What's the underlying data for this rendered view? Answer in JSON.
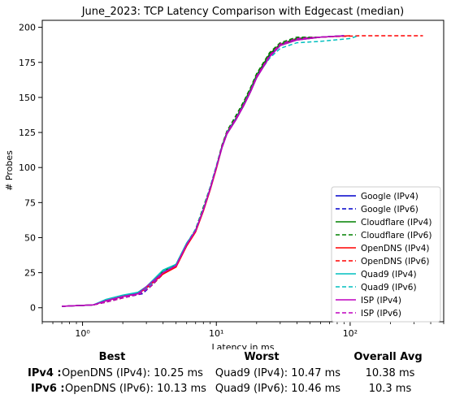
{
  "chart_data": {
    "type": "line",
    "title": "June_2023: TCP Latency Comparison with Edgecast (median)",
    "xlabel": "Latency in ms",
    "ylabel": "# Probes",
    "xscale": "log",
    "xlim": [
      0.5,
      500
    ],
    "ylim": [
      -10,
      205
    ],
    "x_ticks": [
      {
        "value": 1,
        "label": "10⁰"
      },
      {
        "value": 10,
        "label": "10¹"
      },
      {
        "value": 100,
        "label": "10²"
      }
    ],
    "y_ticks": [
      0,
      25,
      50,
      75,
      100,
      125,
      150,
      175,
      200
    ],
    "legend_position": "lower-right",
    "series": [
      {
        "name": "Google (IPv4)",
        "color": "#0000cc",
        "dash": "solid",
        "points": [
          [
            0.7,
            1
          ],
          [
            1.2,
            2
          ],
          [
            1.5,
            5
          ],
          [
            2,
            8
          ],
          [
            2.6,
            10
          ],
          [
            3,
            15
          ],
          [
            4,
            25
          ],
          [
            5,
            30
          ],
          [
            6,
            45
          ],
          [
            7,
            55
          ],
          [
            8,
            70
          ],
          [
            9,
            85
          ],
          [
            10,
            100
          ],
          [
            11,
            115
          ],
          [
            12,
            125
          ],
          [
            14,
            135
          ],
          [
            16,
            145
          ],
          [
            18,
            155
          ],
          [
            20,
            165
          ],
          [
            25,
            180
          ],
          [
            30,
            188
          ],
          [
            40,
            192
          ],
          [
            60,
            193
          ],
          [
            90,
            194
          ]
        ]
      },
      {
        "name": "Google (IPv6)",
        "color": "#0000cc",
        "dash": "dashed",
        "points": [
          [
            0.7,
            1
          ],
          [
            1.2,
            2
          ],
          [
            1.5,
            4
          ],
          [
            2,
            7
          ],
          [
            2.8,
            10
          ],
          [
            3.3,
            16
          ],
          [
            4,
            24
          ],
          [
            5,
            31
          ],
          [
            6,
            44
          ],
          [
            7,
            56
          ],
          [
            8,
            71
          ],
          [
            9,
            86
          ],
          [
            10,
            101
          ],
          [
            11,
            114
          ],
          [
            12,
            126
          ],
          [
            14,
            136
          ],
          [
            16,
            146
          ],
          [
            18,
            156
          ],
          [
            20,
            166
          ],
          [
            25,
            181
          ],
          [
            30,
            188
          ],
          [
            40,
            192
          ],
          [
            60,
            193
          ],
          [
            90,
            194
          ]
        ]
      },
      {
        "name": "Cloudflare (IPv4)",
        "color": "#008000",
        "dash": "solid",
        "points": [
          [
            0.7,
            1
          ],
          [
            1.2,
            2
          ],
          [
            1.5,
            5
          ],
          [
            2,
            8
          ],
          [
            2.6,
            11
          ],
          [
            3,
            15
          ],
          [
            4,
            26
          ],
          [
            5,
            31
          ],
          [
            6,
            46
          ],
          [
            7,
            55
          ],
          [
            8,
            70
          ],
          [
            9,
            85
          ],
          [
            10,
            100
          ],
          [
            11,
            115
          ],
          [
            12,
            125
          ],
          [
            14,
            135
          ],
          [
            16,
            146
          ],
          [
            18,
            156
          ],
          [
            20,
            166
          ],
          [
            25,
            181
          ],
          [
            30,
            188
          ],
          [
            40,
            192
          ],
          [
            60,
            193
          ],
          [
            90,
            194
          ]
        ]
      },
      {
        "name": "Cloudflare (IPv6)",
        "color": "#008000",
        "dash": "dashed",
        "points": [
          [
            0.7,
            1
          ],
          [
            1.2,
            2
          ],
          [
            1.5,
            4
          ],
          [
            2,
            7
          ],
          [
            2.7,
            10
          ],
          [
            3.2,
            16
          ],
          [
            4,
            25
          ],
          [
            5,
            30
          ],
          [
            6,
            45
          ],
          [
            7,
            56
          ],
          [
            8,
            72
          ],
          [
            9,
            86
          ],
          [
            10,
            101
          ],
          [
            11,
            116
          ],
          [
            12,
            126
          ],
          [
            14,
            137
          ],
          [
            16,
            147
          ],
          [
            18,
            157
          ],
          [
            20,
            167
          ],
          [
            25,
            182
          ],
          [
            30,
            189
          ],
          [
            40,
            193
          ],
          [
            60,
            193
          ],
          [
            90,
            194
          ]
        ]
      },
      {
        "name": "OpenDNS (IPv4)",
        "color": "#ff0000",
        "dash": "solid",
        "points": [
          [
            0.7,
            1
          ],
          [
            1.2,
            2
          ],
          [
            1.5,
            5
          ],
          [
            2,
            8
          ],
          [
            2.6,
            10
          ],
          [
            3,
            14
          ],
          [
            4,
            24
          ],
          [
            5,
            29
          ],
          [
            6,
            44
          ],
          [
            7,
            54
          ],
          [
            8,
            69
          ],
          [
            9,
            84
          ],
          [
            10,
            99
          ],
          [
            11,
            114
          ],
          [
            12,
            124
          ],
          [
            14,
            134
          ],
          [
            16,
            144
          ],
          [
            18,
            154
          ],
          [
            20,
            164
          ],
          [
            25,
            179
          ],
          [
            30,
            187
          ],
          [
            40,
            191
          ],
          [
            60,
            193
          ],
          [
            100,
            194
          ]
        ]
      },
      {
        "name": "OpenDNS (IPv6)",
        "color": "#ff0000",
        "dash": "dashed",
        "points": [
          [
            0.7,
            1
          ],
          [
            1.2,
            2
          ],
          [
            1.5,
            4
          ],
          [
            2,
            7
          ],
          [
            2.7,
            10
          ],
          [
            3.2,
            15
          ],
          [
            4,
            24
          ],
          [
            5,
            30
          ],
          [
            6,
            45
          ],
          [
            7,
            55
          ],
          [
            8,
            70
          ],
          [
            9,
            85
          ],
          [
            10,
            100
          ],
          [
            11,
            115
          ],
          [
            12,
            125
          ],
          [
            14,
            135
          ],
          [
            16,
            145
          ],
          [
            18,
            155
          ],
          [
            20,
            165
          ],
          [
            25,
            180
          ],
          [
            30,
            188
          ],
          [
            40,
            192
          ],
          [
            60,
            193
          ],
          [
            120,
            194
          ],
          [
            350,
            194
          ]
        ]
      },
      {
        "name": "Quad9 (IPv4)",
        "color": "#00bfbf",
        "dash": "solid",
        "points": [
          [
            0.7,
            1
          ],
          [
            1.2,
            2
          ],
          [
            1.5,
            6
          ],
          [
            2,
            9
          ],
          [
            2.6,
            11
          ],
          [
            3,
            15
          ],
          [
            4,
            27
          ],
          [
            5,
            31
          ],
          [
            6,
            46
          ],
          [
            7,
            55
          ],
          [
            8,
            70
          ],
          [
            9,
            85
          ],
          [
            10,
            100
          ],
          [
            11,
            114
          ],
          [
            12,
            124
          ],
          [
            14,
            134
          ],
          [
            16,
            144
          ],
          [
            18,
            154
          ],
          [
            20,
            164
          ],
          [
            25,
            179
          ],
          [
            30,
            187
          ],
          [
            40,
            191
          ],
          [
            60,
            193
          ],
          [
            90,
            194
          ]
        ]
      },
      {
        "name": "Quad9 (IPv6)",
        "color": "#00bfbf",
        "dash": "dashed",
        "points": [
          [
            0.7,
            1
          ],
          [
            1.2,
            2
          ],
          [
            1.5,
            5
          ],
          [
            2,
            8
          ],
          [
            2.7,
            11
          ],
          [
            3.2,
            16
          ],
          [
            4,
            26
          ],
          [
            5,
            31
          ],
          [
            6,
            46
          ],
          [
            7,
            56
          ],
          [
            8,
            71
          ],
          [
            9,
            86
          ],
          [
            10,
            101
          ],
          [
            11,
            115
          ],
          [
            12,
            125
          ],
          [
            14,
            135
          ],
          [
            16,
            145
          ],
          [
            18,
            155
          ],
          [
            20,
            165
          ],
          [
            25,
            178
          ],
          [
            30,
            185
          ],
          [
            40,
            189
          ],
          [
            60,
            190
          ],
          [
            100,
            192
          ],
          [
            115,
            194
          ]
        ]
      },
      {
        "name": "ISP (IPv4)",
        "color": "#bf00bf",
        "dash": "solid",
        "points": [
          [
            0.7,
            1
          ],
          [
            1.2,
            2
          ],
          [
            1.5,
            5
          ],
          [
            2,
            8
          ],
          [
            2.6,
            10
          ],
          [
            3,
            15
          ],
          [
            4,
            25
          ],
          [
            5,
            30
          ],
          [
            6,
            45
          ],
          [
            7,
            55
          ],
          [
            8,
            70
          ],
          [
            9,
            85
          ],
          [
            10,
            100
          ],
          [
            11,
            114
          ],
          [
            12,
            124
          ],
          [
            14,
            134
          ],
          [
            16,
            144
          ],
          [
            18,
            154
          ],
          [
            20,
            164
          ],
          [
            25,
            179
          ],
          [
            30,
            187
          ],
          [
            40,
            191
          ],
          [
            60,
            193
          ],
          [
            90,
            194
          ]
        ]
      },
      {
        "name": "ISP (IPv6)",
        "color": "#bf00bf",
        "dash": "dashed",
        "points": [
          [
            0.7,
            1
          ],
          [
            1.2,
            2
          ],
          [
            1.5,
            4
          ],
          [
            2,
            7
          ],
          [
            2.7,
            10
          ],
          [
            3.2,
            15
          ],
          [
            4,
            25
          ],
          [
            5,
            30
          ],
          [
            6,
            45
          ],
          [
            7,
            55
          ],
          [
            8,
            70
          ],
          [
            9,
            85
          ],
          [
            10,
            100
          ],
          [
            11,
            115
          ],
          [
            12,
            125
          ],
          [
            14,
            135
          ],
          [
            16,
            145
          ],
          [
            18,
            155
          ],
          [
            20,
            165
          ],
          [
            25,
            180
          ],
          [
            30,
            188
          ],
          [
            40,
            192
          ],
          [
            60,
            193
          ],
          [
            90,
            194
          ]
        ]
      }
    ]
  },
  "summary": {
    "headers": {
      "best": "Best",
      "worst": "Worst",
      "avg": "Overall Avg"
    },
    "rows": [
      {
        "label": "IPv4 :",
        "best": "OpenDNS (IPv4): 10.25 ms",
        "worst": "Quad9 (IPv4): 10.47 ms",
        "avg": "10.38 ms"
      },
      {
        "label": "IPv6 :",
        "best": "OpenDNS (IPv6): 10.13 ms",
        "worst": "Quad9 (IPv6): 10.46 ms",
        "avg": "10.3 ms"
      }
    ]
  }
}
